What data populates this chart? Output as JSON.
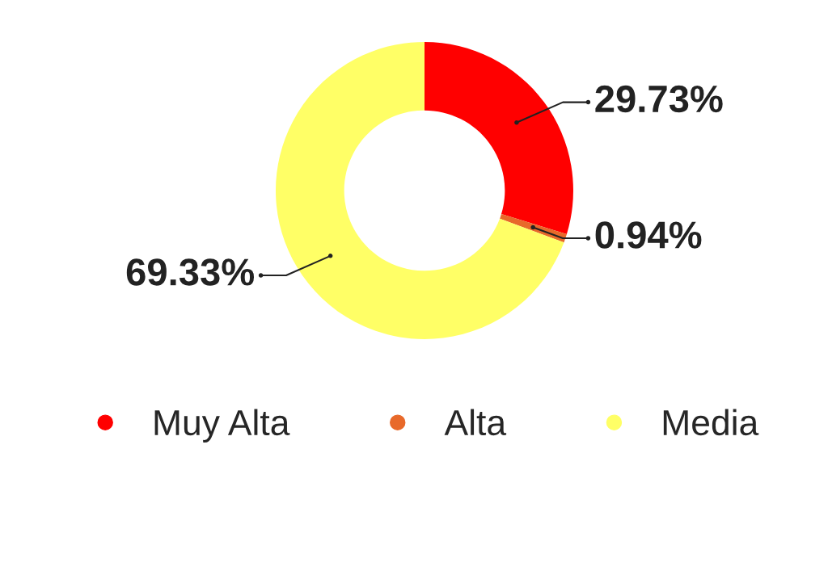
{
  "chart_data": {
    "type": "donut",
    "categories": [
      "Muy Alta",
      "Alta",
      "Media"
    ],
    "values": [
      29.73,
      0.94,
      69.33
    ],
    "colors": [
      "#ff0000",
      "#e8692a",
      "#ffff66"
    ],
    "value_labels": [
      "29.73%",
      "0.94%",
      "69.33%"
    ],
    "legend": "bottom"
  }
}
